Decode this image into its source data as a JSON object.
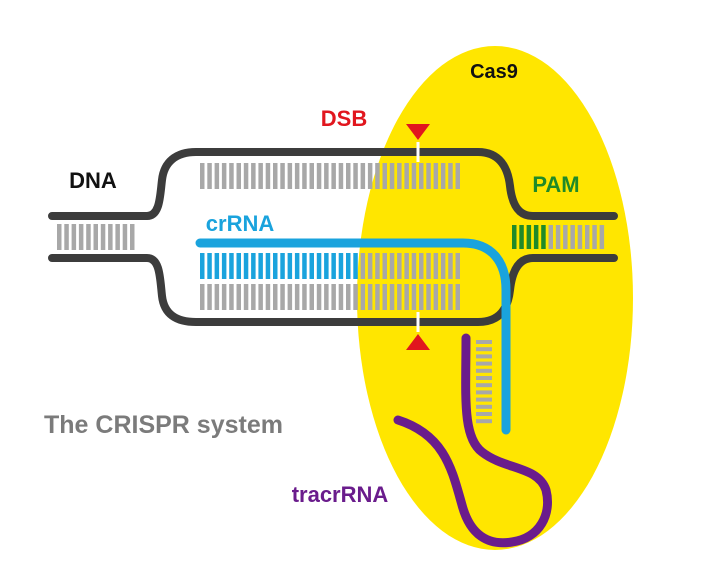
{
  "labels": {
    "cas9": "Cas9",
    "dsb": "DSB",
    "dna": "DNA",
    "pam": "PAM",
    "crrna": "crRNA",
    "title": "The CRISPR system",
    "tracrrna": "tracrRNA"
  },
  "colors": {
    "background": "#ffffff",
    "cas9": "#ffe600",
    "dna_strand": "#3c3c3c",
    "bases": "#a8a8a8",
    "crrna": "#1aa3dd",
    "pam": "#1f8a28",
    "dsb": "#e1161e",
    "tracrrna": "#6a1c8c",
    "title": "#7b7b7b",
    "black": "#111111"
  }
}
